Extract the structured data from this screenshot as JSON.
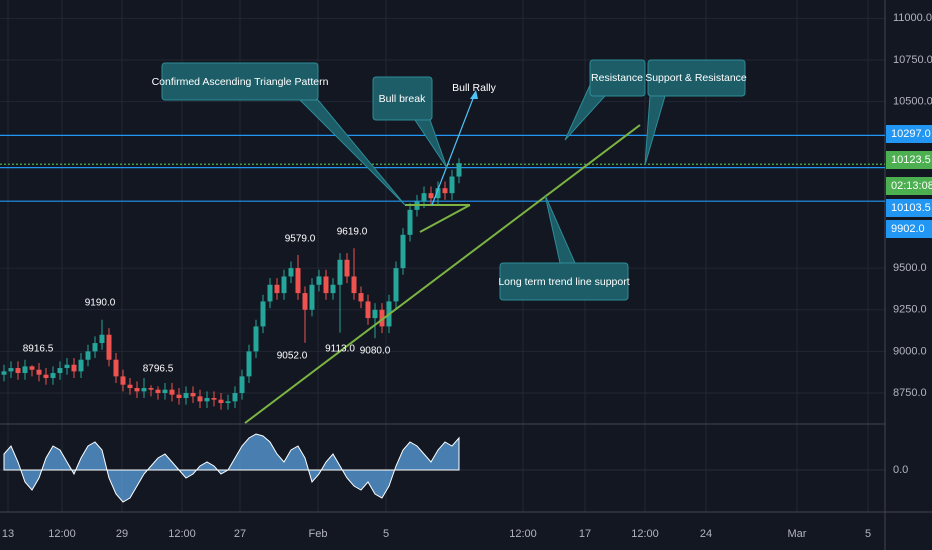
{
  "chart_data": {
    "type": "candlestick",
    "up_color": "#26a69a",
    "down_color": "#ef5350",
    "open": [
      8860,
      8880,
      8900,
      8870,
      8910,
      8890,
      8860,
      8840,
      8870,
      8900,
      8920,
      8880,
      8950,
      9000,
      9050,
      9100,
      8950,
      8850,
      8800,
      8780,
      8760,
      8780,
      8770,
      8750,
      8770,
      8740,
      8720,
      8750,
      8730,
      8700,
      8720,
      8710,
      8690,
      8700,
      8750,
      8850,
      9000,
      9150,
      9300,
      9400,
      9350,
      9450,
      9500,
      9350,
      9250,
      9400,
      9450,
      9350,
      9400,
      9550,
      9450,
      9350,
      9300,
      9200,
      9250,
      9150,
      9300,
      9500,
      9700,
      9850,
      9900,
      9950,
      9920,
      9980,
      9950,
      10050
    ],
    "high": [
      8920,
      8940,
      8940,
      8950,
      8916.5,
      8930,
      8900,
      8910,
      8940,
      8960,
      8960,
      8990,
      9040,
      9090,
      9190,
      9140,
      8990,
      8890,
      8840,
      8820,
      8840,
      8796.5,
      8790,
      8810,
      8810,
      8780,
      8790,
      8790,
      8770,
      8760,
      8760,
      8750,
      8740,
      8790,
      8890,
      9040,
      9190,
      9340,
      9440,
      9440,
      9490,
      9540,
      9579,
      9390,
      9440,
      9490,
      9490,
      9440,
      9590,
      9590,
      9619,
      9390,
      9340,
      9290,
      9290,
      9340,
      9540,
      9740,
      9890,
      9940,
      9990,
      9990,
      10020,
      10020,
      10090,
      10160
    ],
    "low": [
      8820,
      8840,
      8830,
      8830,
      8850,
      8820,
      8800,
      8800,
      8830,
      8860,
      8840,
      8840,
      8910,
      8960,
      9010,
      8910,
      8810,
      8760,
      8740,
      8720,
      8720,
      8730,
      8710,
      8710,
      8700,
      8680,
      8680,
      8690,
      8660,
      8660,
      8670,
      8650,
      8650,
      8660,
      8710,
      8810,
      8960,
      9110,
      9260,
      9310,
      9310,
      9410,
      9310,
      9052,
      9210,
      9360,
      9310,
      9310,
      9113,
      9410,
      9310,
      9260,
      9160,
      9080,
      9110,
      9110,
      9260,
      9460,
      9660,
      9810,
      9860,
      9880,
      9880,
      9910,
      9910,
      10010
    ],
    "close": [
      8880,
      8900,
      8870,
      8910,
      8890,
      8860,
      8840,
      8870,
      8900,
      8920,
      8880,
      8950,
      9000,
      9050,
      9100,
      8950,
      8850,
      8800,
      8780,
      8760,
      8780,
      8770,
      8750,
      8770,
      8740,
      8720,
      8750,
      8730,
      8700,
      8720,
      8710,
      8690,
      8700,
      8750,
      8850,
      9000,
      9150,
      9300,
      9400,
      9350,
      9450,
      9500,
      9350,
      9250,
      9400,
      9450,
      9350,
      9400,
      9550,
      9450,
      9350,
      9300,
      9200,
      9250,
      9150,
      9300,
      9500,
      9700,
      9850,
      9900,
      9950,
      9920,
      9980,
      9950,
      10050,
      10130
    ],
    "ylim": [
      8570,
      11110
    ],
    "yticks": [
      {
        "value": 11000,
        "label": "11000.0"
      },
      {
        "value": 10750,
        "label": "10750.0"
      },
      {
        "value": 10500,
        "label": "10500.0"
      },
      {
        "value": 9500,
        "label": "9500.0"
      },
      {
        "value": 9250,
        "label": "9250.0"
      },
      {
        "value": 9000,
        "label": "9000.0"
      },
      {
        "value": 8750,
        "label": "8750.0"
      }
    ],
    "price_lines": [
      {
        "value": 10297,
        "label": "10297.0",
        "color": "#2196f3",
        "style": "solid"
      },
      {
        "value": 10123.5,
        "label": "10123.5",
        "color": "#4caf50",
        "style": "dotted"
      },
      {
        "value": 10103.5,
        "label": "10103.5",
        "color": "#2196f3",
        "style": "solid"
      },
      {
        "value": 9902,
        "label": "9902.0",
        "color": "#2196f3",
        "style": "solid"
      }
    ],
    "countdown": "02:13:08",
    "peak_labels": [
      {
        "value": 8916.5,
        "label": "8916.5"
      },
      {
        "value": 9190,
        "label": "9190.0"
      },
      {
        "value": 8796.5,
        "label": "8796.5"
      },
      {
        "value": 9579,
        "label": "9579.0"
      },
      {
        "value": 9619,
        "label": "9619.0"
      },
      {
        "value": 9052,
        "label": "9052.0"
      },
      {
        "value": 9113,
        "label": "9113.0"
      },
      {
        "value": 9080,
        "label": "9080.0"
      }
    ],
    "x_labels": [
      "13",
      "12:00",
      "29",
      "12:00",
      "27",
      "Feb",
      "5",
      "12:00",
      "17",
      "12:00",
      "24",
      "Mar",
      "5"
    ],
    "annotations": [
      "Confirmed Ascending Triangle Pattern",
      "Bull break",
      "Bull Rally",
      "Resistance",
      "Support & Resistance",
      "Long term trend line support"
    ],
    "oscillator": {
      "color": "#5ba3e0",
      "ylim": [
        -100,
        100
      ],
      "yticks": [
        {
          "value": 0,
          "label": "0.0"
        }
      ],
      "values": [
        40,
        60,
        20,
        -30,
        -50,
        -20,
        30,
        60,
        50,
        20,
        -10,
        30,
        60,
        70,
        50,
        -20,
        -60,
        -80,
        -70,
        -40,
        -10,
        10,
        30,
        40,
        20,
        0,
        -20,
        -10,
        10,
        20,
        10,
        -10,
        0,
        30,
        60,
        80,
        90,
        85,
        70,
        40,
        20,
        50,
        60,
        30,
        -30,
        -10,
        20,
        40,
        10,
        -20,
        -40,
        -50,
        -30,
        -60,
        -70,
        -40,
        10,
        50,
        70,
        60,
        40,
        20,
        50,
        70,
        60,
        80
      ]
    }
  }
}
